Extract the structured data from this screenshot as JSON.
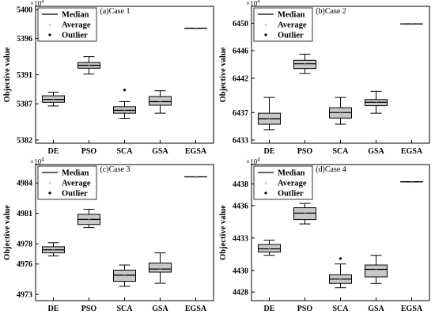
{
  "chart_data": [
    {
      "type": "box",
      "title": "(a)Case 1",
      "ylabel": "Objective value",
      "exponent_label": "×10",
      "exponent_power": "4",
      "ylim": [
        5382,
        5400
      ],
      "yticks": [
        5382,
        5387,
        5391,
        5396,
        5400
      ],
      "categories": [
        "DE",
        "PSO",
        "SCA",
        "GSA",
        "EGSA"
      ],
      "boxes": [
        {
          "whisker_low": 5386.7,
          "q1": 5387.2,
          "median": 5387.6,
          "mean": 5387.6,
          "q3": 5388.1,
          "whisker_high": 5388.6,
          "outliers": []
        },
        {
          "whisker_low": 5391.1,
          "q1": 5391.9,
          "median": 5392.3,
          "mean": 5392.3,
          "q3": 5392.7,
          "whisker_high": 5393.5,
          "outliers": []
        },
        {
          "whisker_low": 5385.0,
          "q1": 5385.7,
          "median": 5386.1,
          "mean": 5386.1,
          "q3": 5386.6,
          "whisker_high": 5387.3,
          "outliers": [
            5388.9
          ]
        },
        {
          "whisker_low": 5385.7,
          "q1": 5386.8,
          "median": 5387.3,
          "mean": 5387.3,
          "q3": 5388.0,
          "whisker_high": 5388.8,
          "outliers": []
        },
        {
          "whisker_low": 5397.4,
          "q1": 5397.4,
          "median": 5397.4,
          "mean": 5397.4,
          "q3": 5397.4,
          "whisker_high": 5397.4,
          "outliers": []
        }
      ],
      "legend": [
        "Median",
        "Average",
        "Outlier"
      ],
      "legend_position": "top-left"
    },
    {
      "type": "box",
      "title": "(b)Case 2",
      "ylabel": "Objective value",
      "exponent_label": "×10",
      "exponent_power": "4",
      "ylim": [
        6433,
        6452
      ],
      "yticks": [
        6433,
        6437,
        6442,
        6446,
        6450
      ],
      "categories": [
        "DE",
        "PSO",
        "SCA",
        "GSA",
        "EGSA"
      ],
      "boxes": [
        {
          "whisker_low": 6434.5,
          "q1": 6435.3,
          "median": 6436.1,
          "mean": 6436.2,
          "q3": 6436.9,
          "whisker_high": 6439.2,
          "outliers": []
        },
        {
          "whisker_low": 6442.7,
          "q1": 6443.4,
          "median": 6444.1,
          "mean": 6444.1,
          "q3": 6444.6,
          "whisker_high": 6445.5,
          "outliers": []
        },
        {
          "whisker_low": 6435.3,
          "q1": 6436.2,
          "median": 6437.0,
          "mean": 6437.0,
          "q3": 6437.7,
          "whisker_high": 6439.2,
          "outliers": []
        },
        {
          "whisker_low": 6436.9,
          "q1": 6438.0,
          "median": 6438.5,
          "mean": 6438.5,
          "q3": 6438.9,
          "whisker_high": 6440.1,
          "outliers": []
        },
        {
          "whisker_low": 6449.9,
          "q1": 6449.9,
          "median": 6449.9,
          "mean": 6449.9,
          "q3": 6449.9,
          "whisker_high": 6449.9,
          "outliers": []
        }
      ],
      "legend": [
        "Median",
        "Average",
        "Outlier"
      ],
      "legend_position": "top-left"
    },
    {
      "type": "box",
      "title": "(c)Case 3",
      "ylabel": "Objective value",
      "exponent_label": "×10",
      "exponent_power": "4",
      "ylim": [
        4972.7,
        4985.5
      ],
      "yticks": [
        4973,
        4976,
        4978,
        4981,
        4984
      ],
      "categories": [
        "DE",
        "PSO",
        "SCA",
        "GSA",
        "EGSA"
      ],
      "boxes": [
        {
          "whisker_low": 4976.8,
          "q1": 4977.1,
          "median": 4977.4,
          "mean": 4977.4,
          "q3": 4977.7,
          "whisker_high": 4978.1,
          "outliers": []
        },
        {
          "whisker_low": 4979.6,
          "q1": 4979.9,
          "median": 4980.4,
          "mean": 4980.4,
          "q3": 4980.9,
          "whisker_high": 4981.4,
          "outliers": []
        },
        {
          "whisker_low": 4973.8,
          "q1": 4974.3,
          "median": 4974.9,
          "mean": 4974.9,
          "q3": 4975.4,
          "whisker_high": 4975.9,
          "outliers": []
        },
        {
          "whisker_low": 4974.1,
          "q1": 4975.2,
          "median": 4975.5,
          "mean": 4975.6,
          "q3": 4976.1,
          "whisker_high": 4977.1,
          "outliers": []
        },
        {
          "whisker_low": 4984.6,
          "q1": 4984.6,
          "median": 4984.6,
          "mean": 4984.6,
          "q3": 4984.6,
          "whisker_high": 4984.6,
          "outliers": []
        }
      ],
      "legend": [
        "Median",
        "Average",
        "Outlier"
      ],
      "legend_position": "top-left"
    },
    {
      "type": "box",
      "title": "(d)Case 4",
      "ylabel": "Objective value",
      "exponent_label": "×10",
      "exponent_power": "4",
      "ylim": [
        4427.5,
        4439.5
      ],
      "yticks": [
        4428,
        4430,
        4433,
        4436,
        4438
      ],
      "categories": [
        "DE",
        "PSO",
        "SCA",
        "GSA",
        "EGSA"
      ],
      "boxes": [
        {
          "whisker_low": 4431.4,
          "q1": 4431.7,
          "median": 4432.0,
          "mean": 4432.0,
          "q3": 4432.4,
          "whisker_high": 4432.8,
          "outliers": []
        },
        {
          "whisker_low": 4434.3,
          "q1": 4434.7,
          "median": 4435.3,
          "mean": 4435.3,
          "q3": 4435.8,
          "whisker_high": 4436.2,
          "outliers": []
        },
        {
          "whisker_low": 4428.4,
          "q1": 4428.8,
          "median": 4429.2,
          "mean": 4429.2,
          "q3": 4429.6,
          "whisker_high": 4430.6,
          "outliers": [
            4431.1
          ]
        },
        {
          "whisker_low": 4428.8,
          "q1": 4429.4,
          "median": 4430.1,
          "mean": 4430.1,
          "q3": 4430.5,
          "whisker_high": 4431.4,
          "outliers": []
        },
        {
          "whisker_low": 4438.2,
          "q1": 4438.2,
          "median": 4438.2,
          "mean": 4438.2,
          "q3": 4438.2,
          "whisker_high": 4438.2,
          "outliers": []
        }
      ],
      "legend": [
        "Median",
        "Average",
        "Outlier"
      ],
      "legend_position": "top-left"
    }
  ],
  "colors": {
    "box_fill": "#c8c8c8",
    "ink": "#000000",
    "mean_marker": "#a8a8a8",
    "background": "#ffffff"
  }
}
